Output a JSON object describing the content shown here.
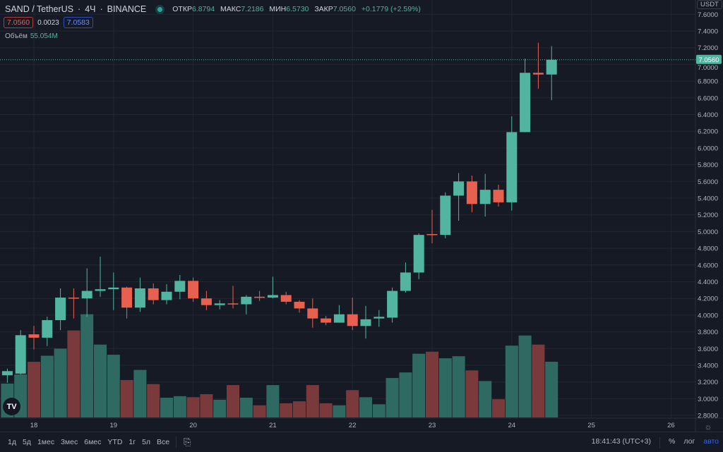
{
  "header": {
    "symbol": "SAND / TetherUS",
    "interval": "4Ч",
    "exchange": "BINANCE",
    "open_label": "ОТКР",
    "open": "6.8794",
    "high_label": "МАКС",
    "high": "7.2186",
    "low_label": "МИН",
    "low": "6.5730",
    "close_label": "ЗАКР",
    "close": "7.0560",
    "change": "+0.1779 (+2.59%)"
  },
  "quote": {
    "sell": "7.0560",
    "spread": "0.0023",
    "buy": "7.0583"
  },
  "volume_legend": {
    "label": "Объём",
    "value": "55.054M"
  },
  "price_axis": {
    "currency": "USDT",
    "last_price": "7.0560"
  },
  "toolbar": {
    "ranges": [
      "1д",
      "5д",
      "1мес",
      "3мес",
      "6мес",
      "YTD",
      "1г",
      "5л",
      "Все"
    ],
    "time": "18:41:43 (UTC+3)",
    "percent": "%",
    "log": "лог",
    "auto": "авто"
  },
  "colors": {
    "up": "#52b5a2",
    "down": "#e8614f",
    "vol_up": "#2f6a62",
    "vol_down": "#7a3a3b",
    "background": "#161a25",
    "auto_active": "#2962ff"
  },
  "chart_data": {
    "type": "candlestick",
    "interval": "4h",
    "ylim": [
      2.8,
      7.6
    ],
    "y_ticks": [
      "7.6000",
      "7.4000",
      "7.2000",
      "7.0000",
      "6.8000",
      "6.6000",
      "6.4000",
      "6.2000",
      "6.0000",
      "5.8000",
      "5.6000",
      "5.4000",
      "5.2000",
      "5.0000",
      "4.8000",
      "4.6000",
      "4.4000",
      "4.2000",
      "4.0000",
      "3.8000",
      "3.6000",
      "3.4000",
      "3.2000",
      "3.0000",
      "2.8000"
    ],
    "x_ticks": [
      "18",
      "19",
      "20",
      "21",
      "22",
      "23",
      "24",
      "25",
      "26"
    ],
    "grid": true,
    "volume_unit": "M",
    "candles": [
      {
        "day": 17,
        "hour": 16,
        "o": 3.28,
        "h": 3.36,
        "l": 3.19,
        "c": 3.33,
        "v": 33.5
      },
      {
        "day": 17,
        "hour": 20,
        "o": 3.3,
        "h": 3.82,
        "l": 3.29,
        "c": 3.76,
        "v": 42.5
      },
      {
        "day": 18,
        "hour": 0,
        "o": 3.77,
        "h": 3.87,
        "l": 3.59,
        "c": 3.73,
        "v": 55
      },
      {
        "day": 18,
        "hour": 4,
        "o": 3.73,
        "h": 3.98,
        "l": 3.63,
        "c": 3.94,
        "v": 61
      },
      {
        "day": 18,
        "hour": 8,
        "o": 3.94,
        "h": 4.32,
        "l": 3.82,
        "c": 4.21,
        "v": 68
      },
      {
        "day": 18,
        "hour": 12,
        "o": 4.21,
        "h": 4.32,
        "l": 3.96,
        "c": 4.2,
        "v": 86
      },
      {
        "day": 18,
        "hour": 16,
        "o": 4.2,
        "h": 4.56,
        "l": 3.98,
        "c": 4.29,
        "v": 102
      },
      {
        "day": 18,
        "hour": 20,
        "o": 4.29,
        "h": 4.7,
        "l": 4.22,
        "c": 4.31,
        "v": 72
      },
      {
        "day": 19,
        "hour": 0,
        "o": 4.31,
        "h": 4.51,
        "l": 4.06,
        "c": 4.33,
        "v": 62
      },
      {
        "day": 19,
        "hour": 4,
        "o": 4.33,
        "h": 4.34,
        "l": 3.96,
        "c": 4.09,
        "v": 37
      },
      {
        "day": 19,
        "hour": 8,
        "o": 4.09,
        "h": 4.45,
        "l": 4.04,
        "c": 4.32,
        "v": 47
      },
      {
        "day": 19,
        "hour": 12,
        "o": 4.32,
        "h": 4.38,
        "l": 4.13,
        "c": 4.18,
        "v": 33
      },
      {
        "day": 19,
        "hour": 16,
        "o": 4.18,
        "h": 4.37,
        "l": 4.13,
        "c": 4.28,
        "v": 19.5
      },
      {
        "day": 19,
        "hour": 20,
        "o": 4.28,
        "h": 4.48,
        "l": 4.19,
        "c": 4.41,
        "v": 21
      },
      {
        "day": 20,
        "hour": 0,
        "o": 4.41,
        "h": 4.45,
        "l": 4.16,
        "c": 4.2,
        "v": 20
      },
      {
        "day": 20,
        "hour": 4,
        "o": 4.2,
        "h": 4.29,
        "l": 4.06,
        "c": 4.12,
        "v": 23
      },
      {
        "day": 20,
        "hour": 8,
        "o": 4.12,
        "h": 4.18,
        "l": 4.07,
        "c": 4.14,
        "v": 17.5
      },
      {
        "day": 20,
        "hour": 12,
        "o": 4.14,
        "h": 4.35,
        "l": 4.08,
        "c": 4.13,
        "v": 32
      },
      {
        "day": 20,
        "hour": 16,
        "o": 4.13,
        "h": 4.24,
        "l": 4.01,
        "c": 4.22,
        "v": 19.5
      },
      {
        "day": 20,
        "hour": 20,
        "o": 4.22,
        "h": 4.29,
        "l": 4.17,
        "c": 4.21,
        "v": 12
      },
      {
        "day": 21,
        "hour": 0,
        "o": 4.21,
        "h": 4.46,
        "l": 4.2,
        "c": 4.24,
        "v": 32
      },
      {
        "day": 21,
        "hour": 4,
        "o": 4.24,
        "h": 4.28,
        "l": 4.13,
        "c": 4.16,
        "v": 14
      },
      {
        "day": 21,
        "hour": 8,
        "o": 4.16,
        "h": 4.18,
        "l": 4.03,
        "c": 4.08,
        "v": 16
      },
      {
        "day": 21,
        "hour": 12,
        "o": 4.08,
        "h": 4.2,
        "l": 3.85,
        "c": 3.96,
        "v": 32
      },
      {
        "day": 21,
        "hour": 16,
        "o": 3.96,
        "h": 3.99,
        "l": 3.88,
        "c": 3.91,
        "v": 14
      },
      {
        "day": 21,
        "hour": 20,
        "o": 3.91,
        "h": 4.12,
        "l": 3.91,
        "c": 4.01,
        "v": 12
      },
      {
        "day": 22,
        "hour": 0,
        "o": 4.01,
        "h": 4.21,
        "l": 3.82,
        "c": 3.87,
        "v": 27
      },
      {
        "day": 22,
        "hour": 4,
        "o": 3.87,
        "h": 4.11,
        "l": 3.72,
        "c": 3.95,
        "v": 20
      },
      {
        "day": 22,
        "hour": 8,
        "o": 3.96,
        "h": 4.06,
        "l": 3.86,
        "c": 3.98,
        "v": 13
      },
      {
        "day": 22,
        "hour": 12,
        "o": 3.97,
        "h": 4.33,
        "l": 3.91,
        "c": 4.29,
        "v": 39
      },
      {
        "day": 22,
        "hour": 16,
        "o": 4.29,
        "h": 4.63,
        "l": 4.27,
        "c": 4.51,
        "v": 44.5
      },
      {
        "day": 22,
        "hour": 20,
        "o": 4.51,
        "h": 4.98,
        "l": 4.43,
        "c": 4.96,
        "v": 63
      },
      {
        "day": 23,
        "hour": 0,
        "o": 4.97,
        "h": 5.26,
        "l": 4.86,
        "c": 4.96,
        "v": 65
      },
      {
        "day": 23,
        "hour": 4,
        "o": 4.96,
        "h": 5.47,
        "l": 4.92,
        "c": 5.43,
        "v": 58.5
      },
      {
        "day": 23,
        "hour": 8,
        "o": 5.43,
        "h": 5.7,
        "l": 5.13,
        "c": 5.6,
        "v": 60.5
      },
      {
        "day": 23,
        "hour": 12,
        "o": 5.6,
        "h": 5.67,
        "l": 5.23,
        "c": 5.33,
        "v": 46.5
      },
      {
        "day": 23,
        "hour": 16,
        "o": 5.33,
        "h": 5.69,
        "l": 5.18,
        "c": 5.5,
        "v": 36
      },
      {
        "day": 23,
        "hour": 20,
        "o": 5.5,
        "h": 5.56,
        "l": 5.3,
        "c": 5.35,
        "v": 18
      },
      {
        "day": 24,
        "hour": 0,
        "o": 5.35,
        "h": 6.38,
        "l": 5.25,
        "c": 6.19,
        "v": 71
      },
      {
        "day": 24,
        "hour": 4,
        "o": 6.19,
        "h": 7.07,
        "l": 6.19,
        "c": 6.9,
        "v": 81
      },
      {
        "day": 24,
        "hour": 8,
        "o": 6.9,
        "h": 7.26,
        "l": 6.71,
        "c": 6.8794,
        "v": 72
      },
      {
        "day": 24,
        "hour": 12,
        "o": 6.8794,
        "h": 7.2186,
        "l": 6.573,
        "c": 7.056,
        "v": 55.054
      }
    ]
  }
}
